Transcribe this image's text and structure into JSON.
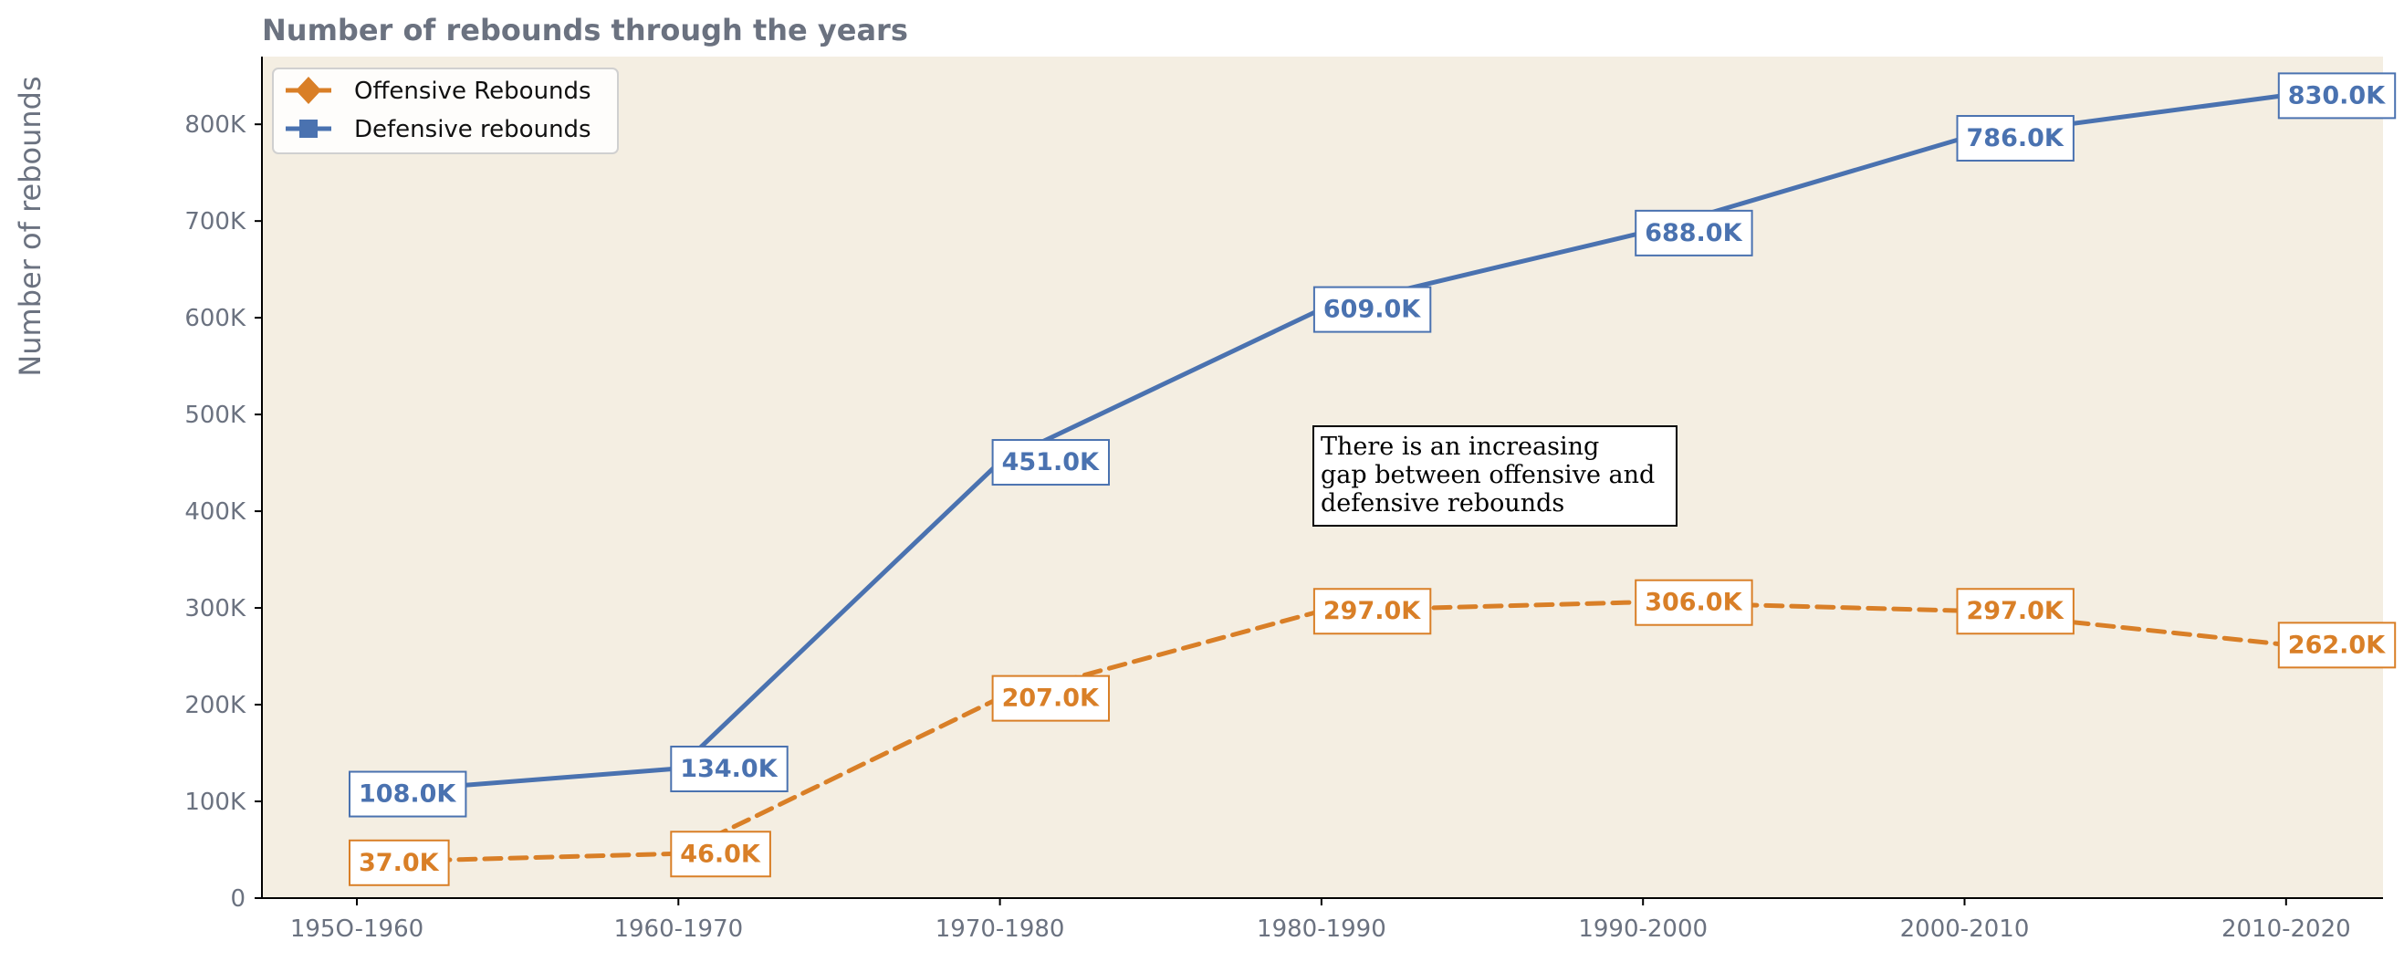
{
  "chart_data": {
    "type": "line",
    "title": "Number of rebounds through the years",
    "xlabel": "",
    "ylabel": "Number of rebounds",
    "categories": [
      "195O-1960",
      "1960-1970",
      "1970-1980",
      "1980-1990",
      "1990-2000",
      "2000-2010",
      "2010-2020"
    ],
    "ylim": [
      0,
      870000
    ],
    "yticks": [
      0,
      100000,
      200000,
      300000,
      400000,
      500000,
      600000,
      700000,
      800000
    ],
    "ytick_labels": [
      "0",
      "100K",
      "200K",
      "300K",
      "400K",
      "500K",
      "600K",
      "700K",
      "800K"
    ],
    "grid": false,
    "background": "#f4eee2",
    "legend_position": "top-left",
    "series": [
      {
        "name": "Offensive Rebounds",
        "color": "#d97f27",
        "style": "dashed",
        "marker": "diamond",
        "values": [
          37000,
          46000,
          207000,
          297000,
          306000,
          297000,
          262000
        ],
        "labels": [
          "37.0K",
          "46.0K",
          "207.0K",
          "297.0K",
          "306.0K",
          "297.0K",
          "262.0K"
        ]
      },
      {
        "name": "Defensive rebounds",
        "color": "#4a72b0",
        "style": "solid",
        "marker": "square",
        "values": [
          108000,
          134000,
          451000,
          609000,
          688000,
          786000,
          830000
        ],
        "labels": [
          "108.0K",
          "134.0K",
          "451.0K",
          "609.0K",
          "688.0K",
          "786.0K",
          "830.0K"
        ]
      }
    ],
    "annotation": {
      "lines": [
        "There is an increasing",
        "gap between offensive and",
        "defensive rebounds"
      ]
    }
  }
}
